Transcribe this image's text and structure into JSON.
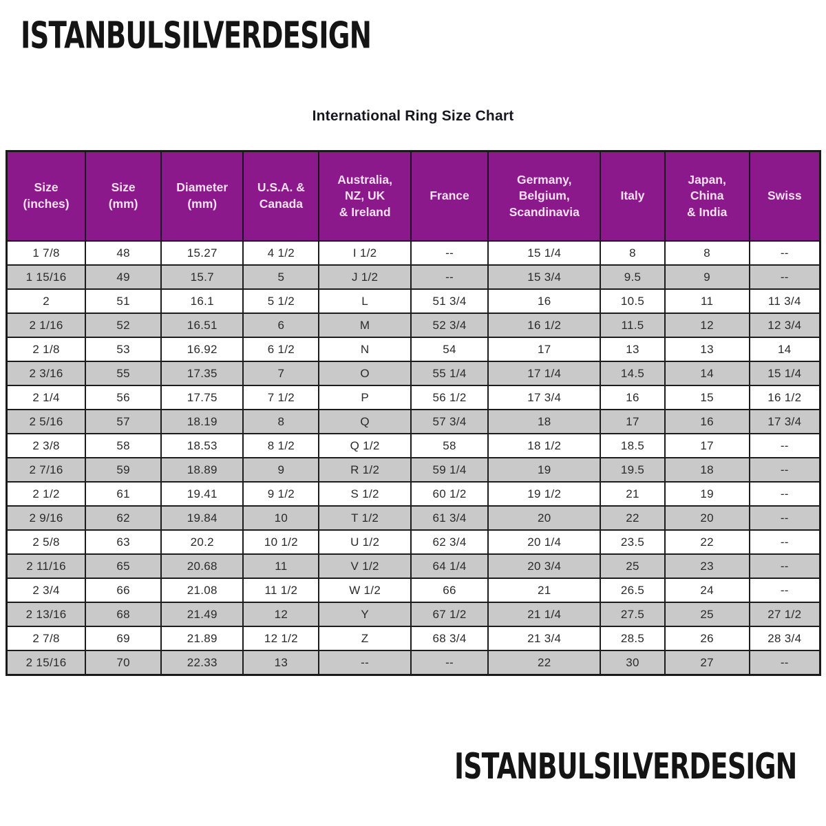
{
  "branding": {
    "logo_top": "ISTANBULSILVERDESIGN",
    "logo_bottom": "ISTANBULSILVERDESIGN"
  },
  "chart": {
    "title": "International Ring Size Chart"
  },
  "colors": {
    "header_bg": "#8b198c",
    "header_text": "#f6e0f2",
    "stripe_row_bg": "#c9c9c9",
    "border": "#1c1c1c",
    "logo_text": "#141414"
  },
  "table": {
    "columns": [
      {
        "label": "Size\n(inches)"
      },
      {
        "label": "Size\n(mm)"
      },
      {
        "label": "Diameter\n(mm)"
      },
      {
        "label": "U.S.A. &\nCanada"
      },
      {
        "label": "Australia,\nNZ, UK\n& Ireland"
      },
      {
        "label": "France"
      },
      {
        "label": "Germany,\nBelgium,\nScandinavia"
      },
      {
        "label": "Italy"
      },
      {
        "label": "Japan,\nChina\n& India"
      },
      {
        "label": "Swiss"
      }
    ],
    "rows": [
      [
        "1 7/8",
        "48",
        "15.27",
        "4 1/2",
        "I 1/2",
        "--",
        "15 1/4",
        "8",
        "8",
        "--"
      ],
      [
        "1 15/16",
        "49",
        "15.7",
        "5",
        "J 1/2",
        "--",
        "15 3/4",
        "9.5",
        "9",
        "--"
      ],
      [
        "2",
        "51",
        "16.1",
        "5 1/2",
        "L",
        "51 3/4",
        "16",
        "10.5",
        "11",
        "11 3/4"
      ],
      [
        "2 1/16",
        "52",
        "16.51",
        "6",
        "M",
        "52 3/4",
        "16 1/2",
        "11.5",
        "12",
        "12 3/4"
      ],
      [
        "2 1/8",
        "53",
        "16.92",
        "6 1/2",
        "N",
        "54",
        "17",
        "13",
        "13",
        "14"
      ],
      [
        "2 3/16",
        "55",
        "17.35",
        "7",
        "O",
        "55 1/4",
        "17 1/4",
        "14.5",
        "14",
        "15 1/4"
      ],
      [
        "2 1/4",
        "56",
        "17.75",
        "7 1/2",
        "P",
        "56 1/2",
        "17 3/4",
        "16",
        "15",
        "16 1/2"
      ],
      [
        "2 5/16",
        "57",
        "18.19",
        "8",
        "Q",
        "57 3/4",
        "18",
        "17",
        "16",
        "17 3/4"
      ],
      [
        "2 3/8",
        "58",
        "18.53",
        "8 1/2",
        "Q 1/2",
        "58",
        "18 1/2",
        "18.5",
        "17",
        "--"
      ],
      [
        "2 7/16",
        "59",
        "18.89",
        "9",
        "R 1/2",
        "59 1/4",
        "19",
        "19.5",
        "18",
        "--"
      ],
      [
        "2 1/2",
        "61",
        "19.41",
        "9 1/2",
        "S 1/2",
        "60 1/2",
        "19 1/2",
        "21",
        "19",
        "--"
      ],
      [
        "2 9/16",
        "62",
        "19.84",
        "10",
        "T 1/2",
        "61 3/4",
        "20",
        "22",
        "20",
        "--"
      ],
      [
        "2 5/8",
        "63",
        "20.2",
        "10 1/2",
        "U 1/2",
        "62 3/4",
        "20 1/4",
        "23.5",
        "22",
        "--"
      ],
      [
        "2 11/16",
        "65",
        "20.68",
        "11",
        "V 1/2",
        "64 1/4",
        "20 3/4",
        "25",
        "23",
        "--"
      ],
      [
        "2 3/4",
        "66",
        "21.08",
        "11 1/2",
        "W 1/2",
        "66",
        "21",
        "26.5",
        "24",
        "--"
      ],
      [
        "2 13/16",
        "68",
        "21.49",
        "12",
        "Y",
        "67 1/2",
        "21 1/4",
        "27.5",
        "25",
        "27 1/2"
      ],
      [
        "2 7/8",
        "69",
        "21.89",
        "12 1/2",
        "Z",
        "68 3/4",
        "21 3/4",
        "28.5",
        "26",
        "28 3/4"
      ],
      [
        "2 15/16",
        "70",
        "22.33",
        "13",
        "--",
        "--",
        "22",
        "30",
        "27",
        "--"
      ]
    ]
  }
}
